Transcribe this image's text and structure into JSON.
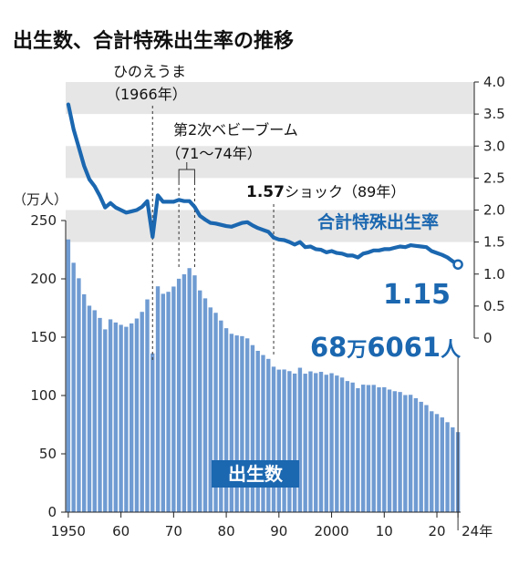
{
  "chart_data": {
    "type": "bar+line",
    "title": "出生数、合計特殊出生率の推移",
    "x": [
      1950,
      1951,
      1952,
      1953,
      1954,
      1955,
      1956,
      1957,
      1958,
      1959,
      1960,
      1961,
      1962,
      1963,
      1964,
      1965,
      1966,
      1967,
      1968,
      1969,
      1970,
      1971,
      1972,
      1973,
      1974,
      1975,
      1976,
      1977,
      1978,
      1979,
      1980,
      1981,
      1982,
      1983,
      1984,
      1985,
      1986,
      1987,
      1988,
      1989,
      1990,
      1991,
      1992,
      1993,
      1994,
      1995,
      1996,
      1997,
      1998,
      1999,
      2000,
      2001,
      2002,
      2003,
      2004,
      2005,
      2006,
      2007,
      2008,
      2009,
      2010,
      2011,
      2012,
      2013,
      2014,
      2015,
      2016,
      2017,
      2018,
      2019,
      2020,
      2021,
      2022,
      2023,
      2024
    ],
    "x_tick_labels": [
      "1950",
      "60",
      "70",
      "80",
      "90",
      "2000",
      "10",
      "20",
      "24年"
    ],
    "series": [
      {
        "name": "出生数",
        "type": "bar",
        "axis": "left",
        "values": [
          233.8,
          213.8,
          200.5,
          186.8,
          177.0,
          173.1,
          166.5,
          156.7,
          165.3,
          162.6,
          160.6,
          158.9,
          161.8,
          166.0,
          171.7,
          182.4,
          136.1,
          193.6,
          187.2,
          188.9,
          193.4,
          200.1,
          203.9,
          209.2,
          203.0,
          190.1,
          183.3,
          175.5,
          170.9,
          164.3,
          157.7,
          152.9,
          151.5,
          150.9,
          149.0,
          143.2,
          138.3,
          134.7,
          131.4,
          124.7,
          122.2,
          122.3,
          120.9,
          118.8,
          123.8,
          118.7,
          120.7,
          119.2,
          120.3,
          117.8,
          119.1,
          117.1,
          115.4,
          112.4,
          111.1,
          106.3,
          109.3,
          109.0,
          109.1,
          107.0,
          107.1,
          105.1,
          103.7,
          103.0,
          100.4,
          100.6,
          97.7,
          94.6,
          91.8,
          86.5,
          84.1,
          81.2,
          77.1,
          72.7,
          68.6061
        ]
      },
      {
        "name": "合計特殊出生率",
        "type": "line",
        "axis": "right",
        "values": [
          3.65,
          3.26,
          2.98,
          2.69,
          2.48,
          2.37,
          2.22,
          2.04,
          2.11,
          2.04,
          2.0,
          1.96,
          1.98,
          2.0,
          2.05,
          2.14,
          1.58,
          2.23,
          2.13,
          2.13,
          2.13,
          2.16,
          2.14,
          2.14,
          2.05,
          1.91,
          1.85,
          1.8,
          1.79,
          1.77,
          1.75,
          1.74,
          1.77,
          1.8,
          1.81,
          1.76,
          1.72,
          1.69,
          1.66,
          1.57,
          1.54,
          1.53,
          1.5,
          1.46,
          1.5,
          1.42,
          1.43,
          1.39,
          1.38,
          1.34,
          1.36,
          1.33,
          1.32,
          1.29,
          1.29,
          1.26,
          1.32,
          1.34,
          1.37,
          1.37,
          1.39,
          1.39,
          1.41,
          1.43,
          1.42,
          1.45,
          1.44,
          1.43,
          1.42,
          1.36,
          1.33,
          1.3,
          1.26,
          1.2,
          1.15
        ]
      }
    ],
    "left_axis": {
      "unit_label": "（万人）",
      "ylim": [
        0,
        250
      ],
      "ticks": [
        "0",
        "50",
        "100",
        "150",
        "200",
        "250"
      ]
    },
    "right_axis": {
      "ylim": [
        0,
        4.0
      ],
      "ticks": [
        "0",
        "0.5",
        "1.0",
        "1.5",
        "2.0",
        "2.5",
        "3.0",
        "3.5",
        "4.0"
      ]
    },
    "bar_color": "#6f9bd2",
    "line_color": "#1b67b0",
    "annotations": {
      "hinoeuma_line1": "ひのえうま",
      "hinoeuma_line2": "（1966年）",
      "babyboom_line1": "第2次ベビーブーム",
      "babyboom_line2": "（71～74年）",
      "shock_prefix": "1.57",
      "shock_main": "ショック",
      "shock_suffix": "（89年）",
      "rate_label": "合計特殊出生率",
      "rate_last": "1.15",
      "births_label": "出生数",
      "births_last_a": "68",
      "births_last_b": "万",
      "births_last_c": "6061",
      "births_last_d": "人"
    }
  }
}
